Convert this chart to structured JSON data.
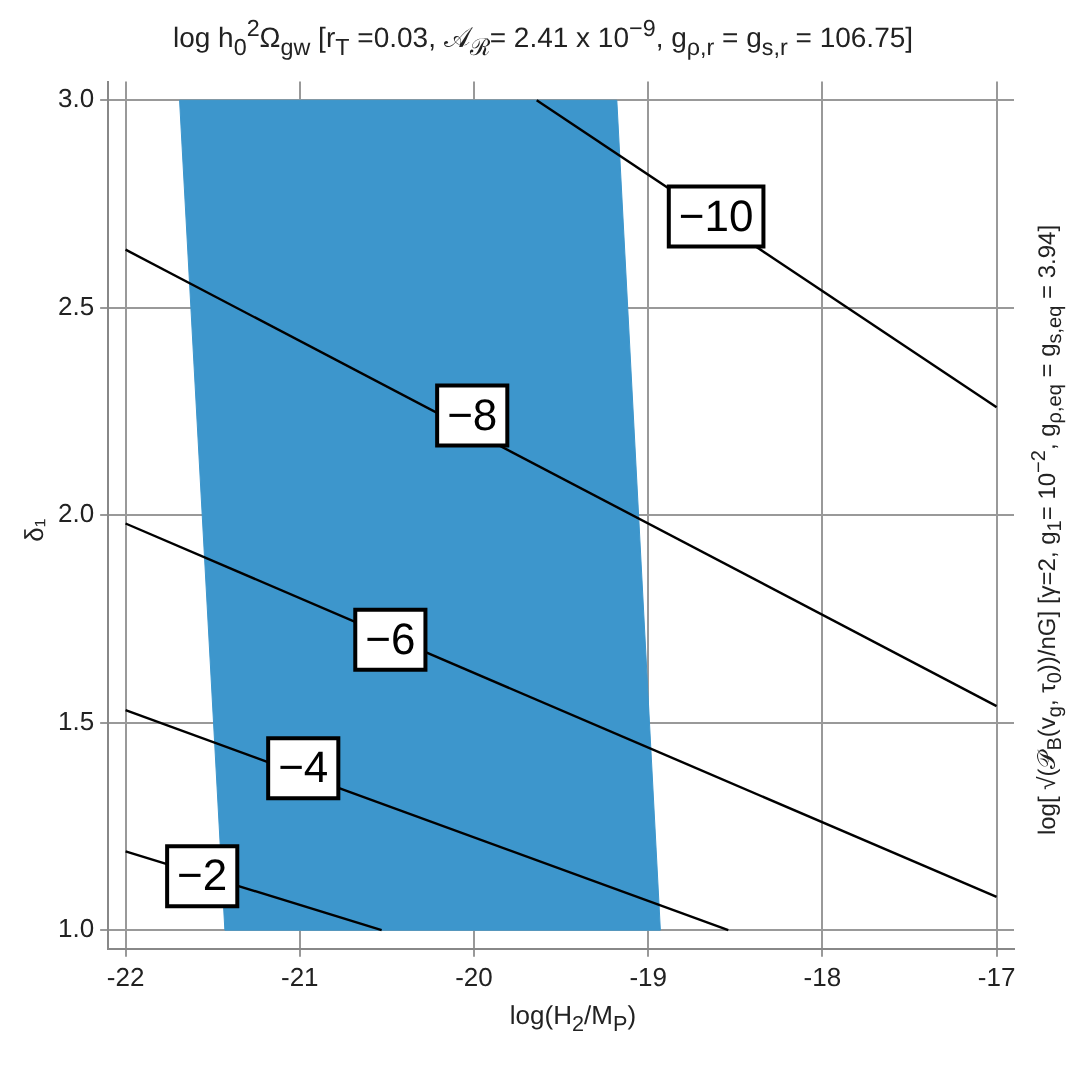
{
  "chart_data": {
    "type": "line",
    "title": "log h$_{0}$$^{2}$Ω$_{gw}$ [r$_{T}$ =0.03, 𝒜$_{ℛ}$= 2.41 x 10$^{−9}$, g$_{ρ,r}$ = g$_{s,r}$ = 106.75]",
    "xlabel": "log(H$_{2}$/M$_{P}$)",
    "ylabel": "δ₁",
    "y2label": "log[ √(𝒫$_{B}$(v$_{g}$, τ$_{0}$))/nG] [γ=2, g$_{1}$= 10$^{−2}$, g$_{ρ,eq}$ = g$_{s,eq}$ = 3.94]",
    "series": [
      {
        "type": "area",
        "color": "#3d96cc",
        "x": [
          -21.69,
          -19.18,
          -18.93,
          -21.43,
          -21.69
        ],
        "values": [
          3.0,
          3.0,
          1.0,
          1.0,
          3.0
        ]
      },
      {
        "color": "#000000",
        "x": [
          -19.64,
          -17.0
        ],
        "values": [
          3.0,
          2.26
        ]
      },
      {
        "color": "#000000",
        "x": [
          -22.0,
          -17.0
        ],
        "values": [
          2.64,
          1.54
        ]
      },
      {
        "color": "#000000",
        "x": [
          -22.0,
          -17.0
        ],
        "values": [
          1.98,
          1.08
        ]
      },
      {
        "color": "#000000",
        "x": [
          -22.0,
          -18.54
        ],
        "values": [
          1.53,
          1.0
        ]
      },
      {
        "color": "#000000",
        "x": [
          -22.0,
          -20.53
        ],
        "values": [
          1.19,
          1.0
        ]
      }
    ],
    "annotations": [
      {
        "text": "−10",
        "x": -18.61,
        "y": 2.72
      },
      {
        "text": "−8",
        "x": -20.01,
        "y": 2.24
      },
      {
        "text": "−6",
        "x": -20.48,
        "y": 1.7
      },
      {
        "text": "−4",
        "x": -20.98,
        "y": 1.39
      },
      {
        "text": "−2",
        "x": -21.56,
        "y": 1.13
      }
    ],
    "xlim": [
      -22.1,
      -16.9
    ],
    "ylim": [
      0.955,
      3.045
    ],
    "xticks": [
      -22,
      -21,
      -20,
      -19,
      -18,
      -17
    ],
    "yticks": [
      {
        "value": 1,
        "label": "1.0"
      },
      {
        "value": 1.5,
        "label": "1.5"
      },
      {
        "value": 2,
        "label": "2.0"
      },
      {
        "value": 2.5,
        "label": "2.5"
      },
      {
        "value": 3,
        "label": "3.0"
      }
    ],
    "grid": true,
    "legend": false,
    "line_style": "solid",
    "marker": "none"
  }
}
